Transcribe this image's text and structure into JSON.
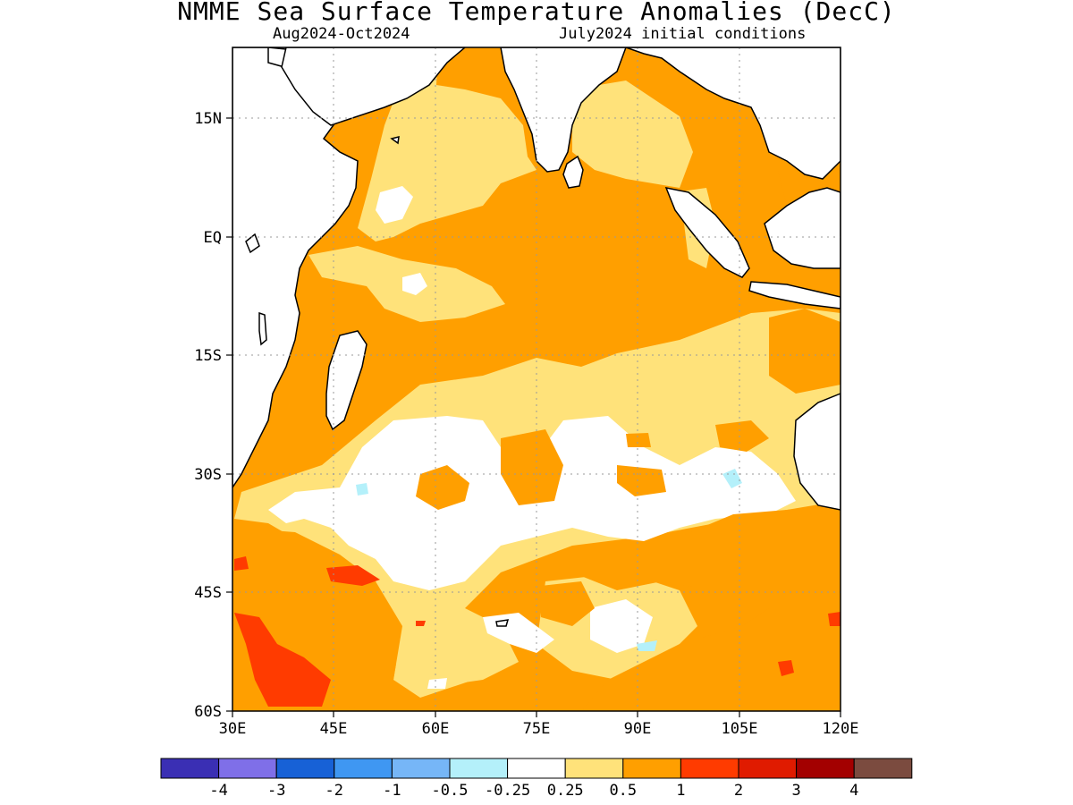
{
  "title": "NMME Sea Surface Temperature Anomalies (DecC)",
  "subtitle_left": "Aug2024-Oct2024",
  "subtitle_right": "July2024 initial conditions",
  "lat_ticks": [
    "15N",
    "EQ",
    "15S",
    "30S",
    "45S",
    "60S"
  ],
  "lon_ticks": [
    "30E",
    "45E",
    "60E",
    "75E",
    "90E",
    "105E",
    "120E"
  ],
  "colorbar": {
    "colors": [
      "#3a2fb4",
      "#7f6fe8",
      "#1761d6",
      "#3f97f2",
      "#76b6f7",
      "#b4f0fa",
      "#ffffff",
      "#ffe27a",
      "#ff9f00",
      "#ff3b00",
      "#e01b00",
      "#a30000",
      "#7b4b3f"
    ],
    "labels": [
      "-4",
      "-3",
      "-2",
      "-1",
      "-0.5",
      "-0.25",
      "0.25",
      "0.5",
      "1",
      "2",
      "3",
      "4"
    ]
  },
  "colors": {
    "land": "#ffffff",
    "coast": "#000000",
    "grid": "#9a9a9a"
  }
}
